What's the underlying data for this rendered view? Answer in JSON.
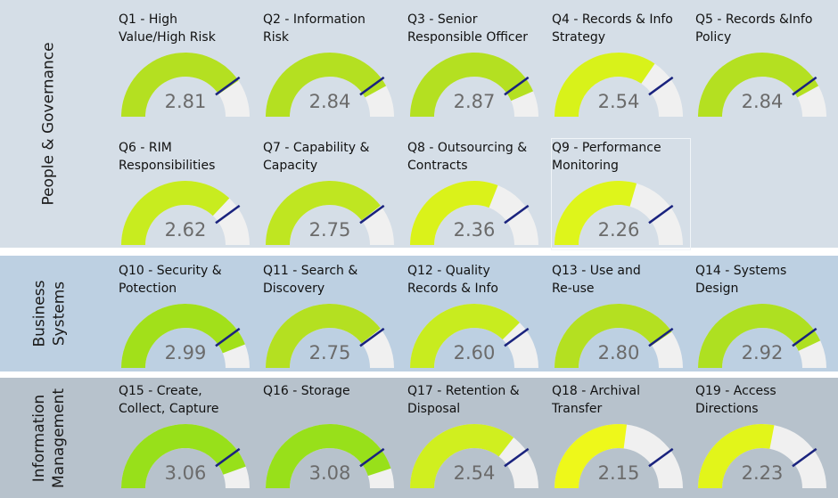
{
  "bands": [
    {
      "id": "pg",
      "label_lines": [
        "People & Governance"
      ]
    },
    {
      "id": "bs",
      "label_lines": [
        "Business",
        "Systems"
      ]
    },
    {
      "id": "im",
      "label_lines": [
        "Information",
        "Management"
      ]
    }
  ],
  "gauges": [
    {
      "title_lines": [
        "Q1 - High",
        "Value/High Risk"
      ],
      "value": "2.81",
      "level": 0.81,
      "fill": "#b4e021"
    },
    {
      "title_lines": [
        "Q2 - Information",
        "Risk"
      ],
      "value": "2.84",
      "level": 0.84,
      "fill": "#b4e021"
    },
    {
      "title_lines": [
        "Q3 - Senior",
        "Responsible Officer"
      ],
      "value": "2.87",
      "level": 0.87,
      "fill": "#b4e021"
    },
    {
      "title_lines": [
        "Q4 - Records & Info",
        "Strategy"
      ],
      "value": "2.54",
      "level": 0.69,
      "fill": "#d8f21a"
    },
    {
      "title_lines": [
        "Q5 - Records &Info",
        "Policy"
      ],
      "value": "2.84",
      "level": 0.84,
      "fill": "#b4e021"
    },
    {
      "title_lines": [
        "Q6 - RIM",
        "Responsibilities"
      ],
      "value": "2.62",
      "level": 0.74,
      "fill": "#c8ec1f"
    },
    {
      "title_lines": [
        "Q7 - Capability &",
        "Capacity"
      ],
      "value": "2.75",
      "level": 0.79,
      "fill": "#bfe621"
    },
    {
      "title_lines": [
        "Q8 - Outsourcing &",
        "Contracts"
      ],
      "value": "2.36",
      "level": 0.62,
      "fill": "#daf21a"
    },
    {
      "title_lines": [
        "Q9 - Performance",
        "Monitoring"
      ],
      "value": "2.26",
      "level": 0.59,
      "fill": "#def51b"
    },
    {
      "title_lines": [
        "Q10 - Security &",
        "Potection"
      ],
      "value": "2.99",
      "level": 0.88,
      "fill": "#a2e01a"
    },
    {
      "title_lines": [
        "Q11 - Search &",
        "Discovery"
      ],
      "value": "2.75",
      "level": 0.79,
      "fill": "#b4e021"
    },
    {
      "title_lines": [
        "Q12 - Quality",
        "Records & Info"
      ],
      "value": "2.60",
      "level": 0.75,
      "fill": "#c8ec1f"
    },
    {
      "title_lines": [
        "Q13 - Use and",
        "Re-use"
      ],
      "value": "2.80",
      "level": 0.81,
      "fill": "#b4e021"
    },
    {
      "title_lines": [
        "Q14 - Systems",
        "Design"
      ],
      "value": "2.92",
      "level": 0.86,
      "fill": "#aee021"
    },
    {
      "title_lines": [
        "Q15 - Create,",
        "Collect, Capture"
      ],
      "value": "3.06",
      "level": 0.89,
      "fill": "#98e01a"
    },
    {
      "title_lines": [
        "Q16 - Storage"
      ],
      "value": "3.08",
      "level": 0.9,
      "fill": "#98e01a"
    },
    {
      "title_lines": [
        "Q17 - Retention &",
        "Disposal"
      ],
      "value": "2.54",
      "level": 0.71,
      "fill": "#d0ef1f"
    },
    {
      "title_lines": [
        "Q18 - Archival",
        "Transfer"
      ],
      "value": "2.15",
      "level": 0.54,
      "fill": "#eef81a"
    },
    {
      "title_lines": [
        "Q19 - Access",
        "Directions"
      ],
      "value": "2.23",
      "level": 0.56,
      "fill": "#e2f51a"
    }
  ],
  "colors": {
    "track": "#f0f0f0",
    "marker": "#1a237e",
    "value_text": "#6b6b6b"
  }
}
